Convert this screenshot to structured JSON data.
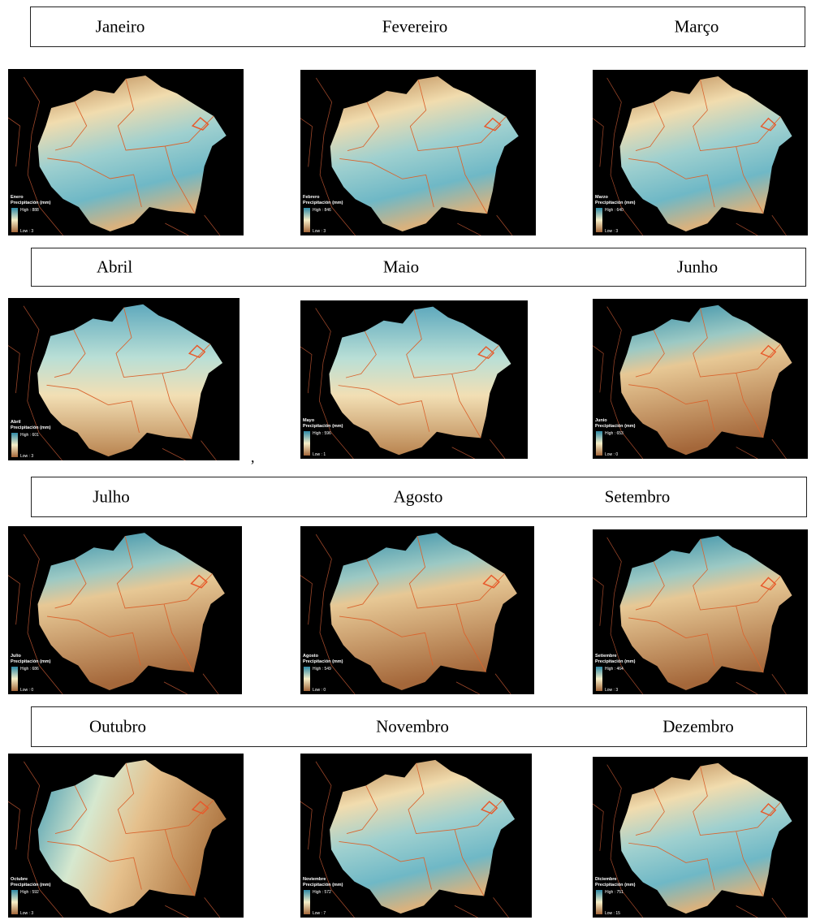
{
  "rows": [
    {
      "months": [
        "Janeiro",
        "Fevereiro",
        "Março"
      ],
      "maps": [
        {
          "label": "Enero",
          "legend_title": "Precipitación (mm)",
          "high": "High : 888",
          "low": "Low : 3"
        },
        {
          "label": "Febrero",
          "legend_title": "Precipitación (mm)",
          "high": "High : 846",
          "low": "Low : 3"
        },
        {
          "label": "Marzo",
          "legend_title": "Precipitación (mm)",
          "high": "High : 640",
          "low": "Low : 3"
        }
      ]
    },
    {
      "months": [
        "Abril",
        "Maio",
        "Junho"
      ],
      "maps": [
        {
          "label": "Abril",
          "legend_title": "Precipitación (mm)",
          "high": "High : 601",
          "low": "Low : 3"
        },
        {
          "label": "Mayo",
          "legend_title": "Precipitación (mm)",
          "high": "High : 596",
          "low": "Low : 1"
        },
        {
          "label": "Junio",
          "legend_title": "Precipitación (mm)",
          "high": "High : 653",
          "low": "Low : 0"
        }
      ]
    },
    {
      "months": [
        "Julho",
        "Agosto",
        "Setembro"
      ],
      "maps": [
        {
          "label": "Julio",
          "legend_title": "Precipitación (mm)",
          "high": "High : 686",
          "low": "Low : 0"
        },
        {
          "label": "Agosto",
          "legend_title": "Precipitación (mm)",
          "high": "High : 549",
          "low": "Low : 0"
        },
        {
          "label": "Setiembre",
          "legend_title": "Precipitación (mm)",
          "high": "High : 464",
          "low": "Low : 3"
        }
      ]
    },
    {
      "months": [
        "Outubro",
        "Novembro",
        "Dezembro"
      ],
      "maps": [
        {
          "label": "Octubre",
          "legend_title": "Precipitación (mm)",
          "high": "High : 592",
          "low": "Low : 3"
        },
        {
          "label": "Noviembre",
          "legend_title": "Precipitación (mm)",
          "high": "High : 572",
          "low": "Low : 7"
        },
        {
          "label": "Diciembre",
          "legend_title": "Precipitación (mm)",
          "high": "High : 751",
          "low": "Low : 15"
        }
      ]
    }
  ],
  "stray_mark": ","
}
